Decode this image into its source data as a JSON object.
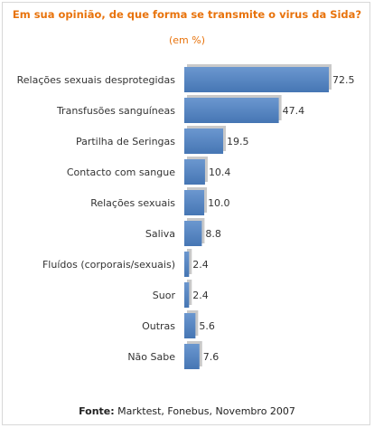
{
  "chart_data": {
    "type": "bar",
    "orientation": "horizontal",
    "title": "Em sua opinião, de que forma se transmite o virus da Sida?",
    "subtitle": "(em %)",
    "categories": [
      "Relações sexuais desprotegidas",
      "Transfusões sanguíneas",
      "Partilha de Seringas",
      "Contacto com sangue",
      "Relações sexuais",
      "Saliva",
      "Fluídos (corporais/sexuais)",
      "Suor",
      "Outras",
      "Não Sabe"
    ],
    "values": [
      72.5,
      47.4,
      19.5,
      10.4,
      10.0,
      8.8,
      2.4,
      2.4,
      5.6,
      7.6
    ],
    "value_labels": [
      "72.5",
      "47.4",
      "19.5",
      "10.4",
      "10.0",
      "8.8",
      "2.4",
      "2.4",
      "5.6",
      "7.6"
    ],
    "xlim": [
      0,
      72.5
    ],
    "grid": false,
    "bar_color": "#4f81bd",
    "title_color": "#e8730c"
  },
  "source": {
    "label": "Fonte:",
    "text": "Marktest, Fonebus, Novembro 2007"
  }
}
